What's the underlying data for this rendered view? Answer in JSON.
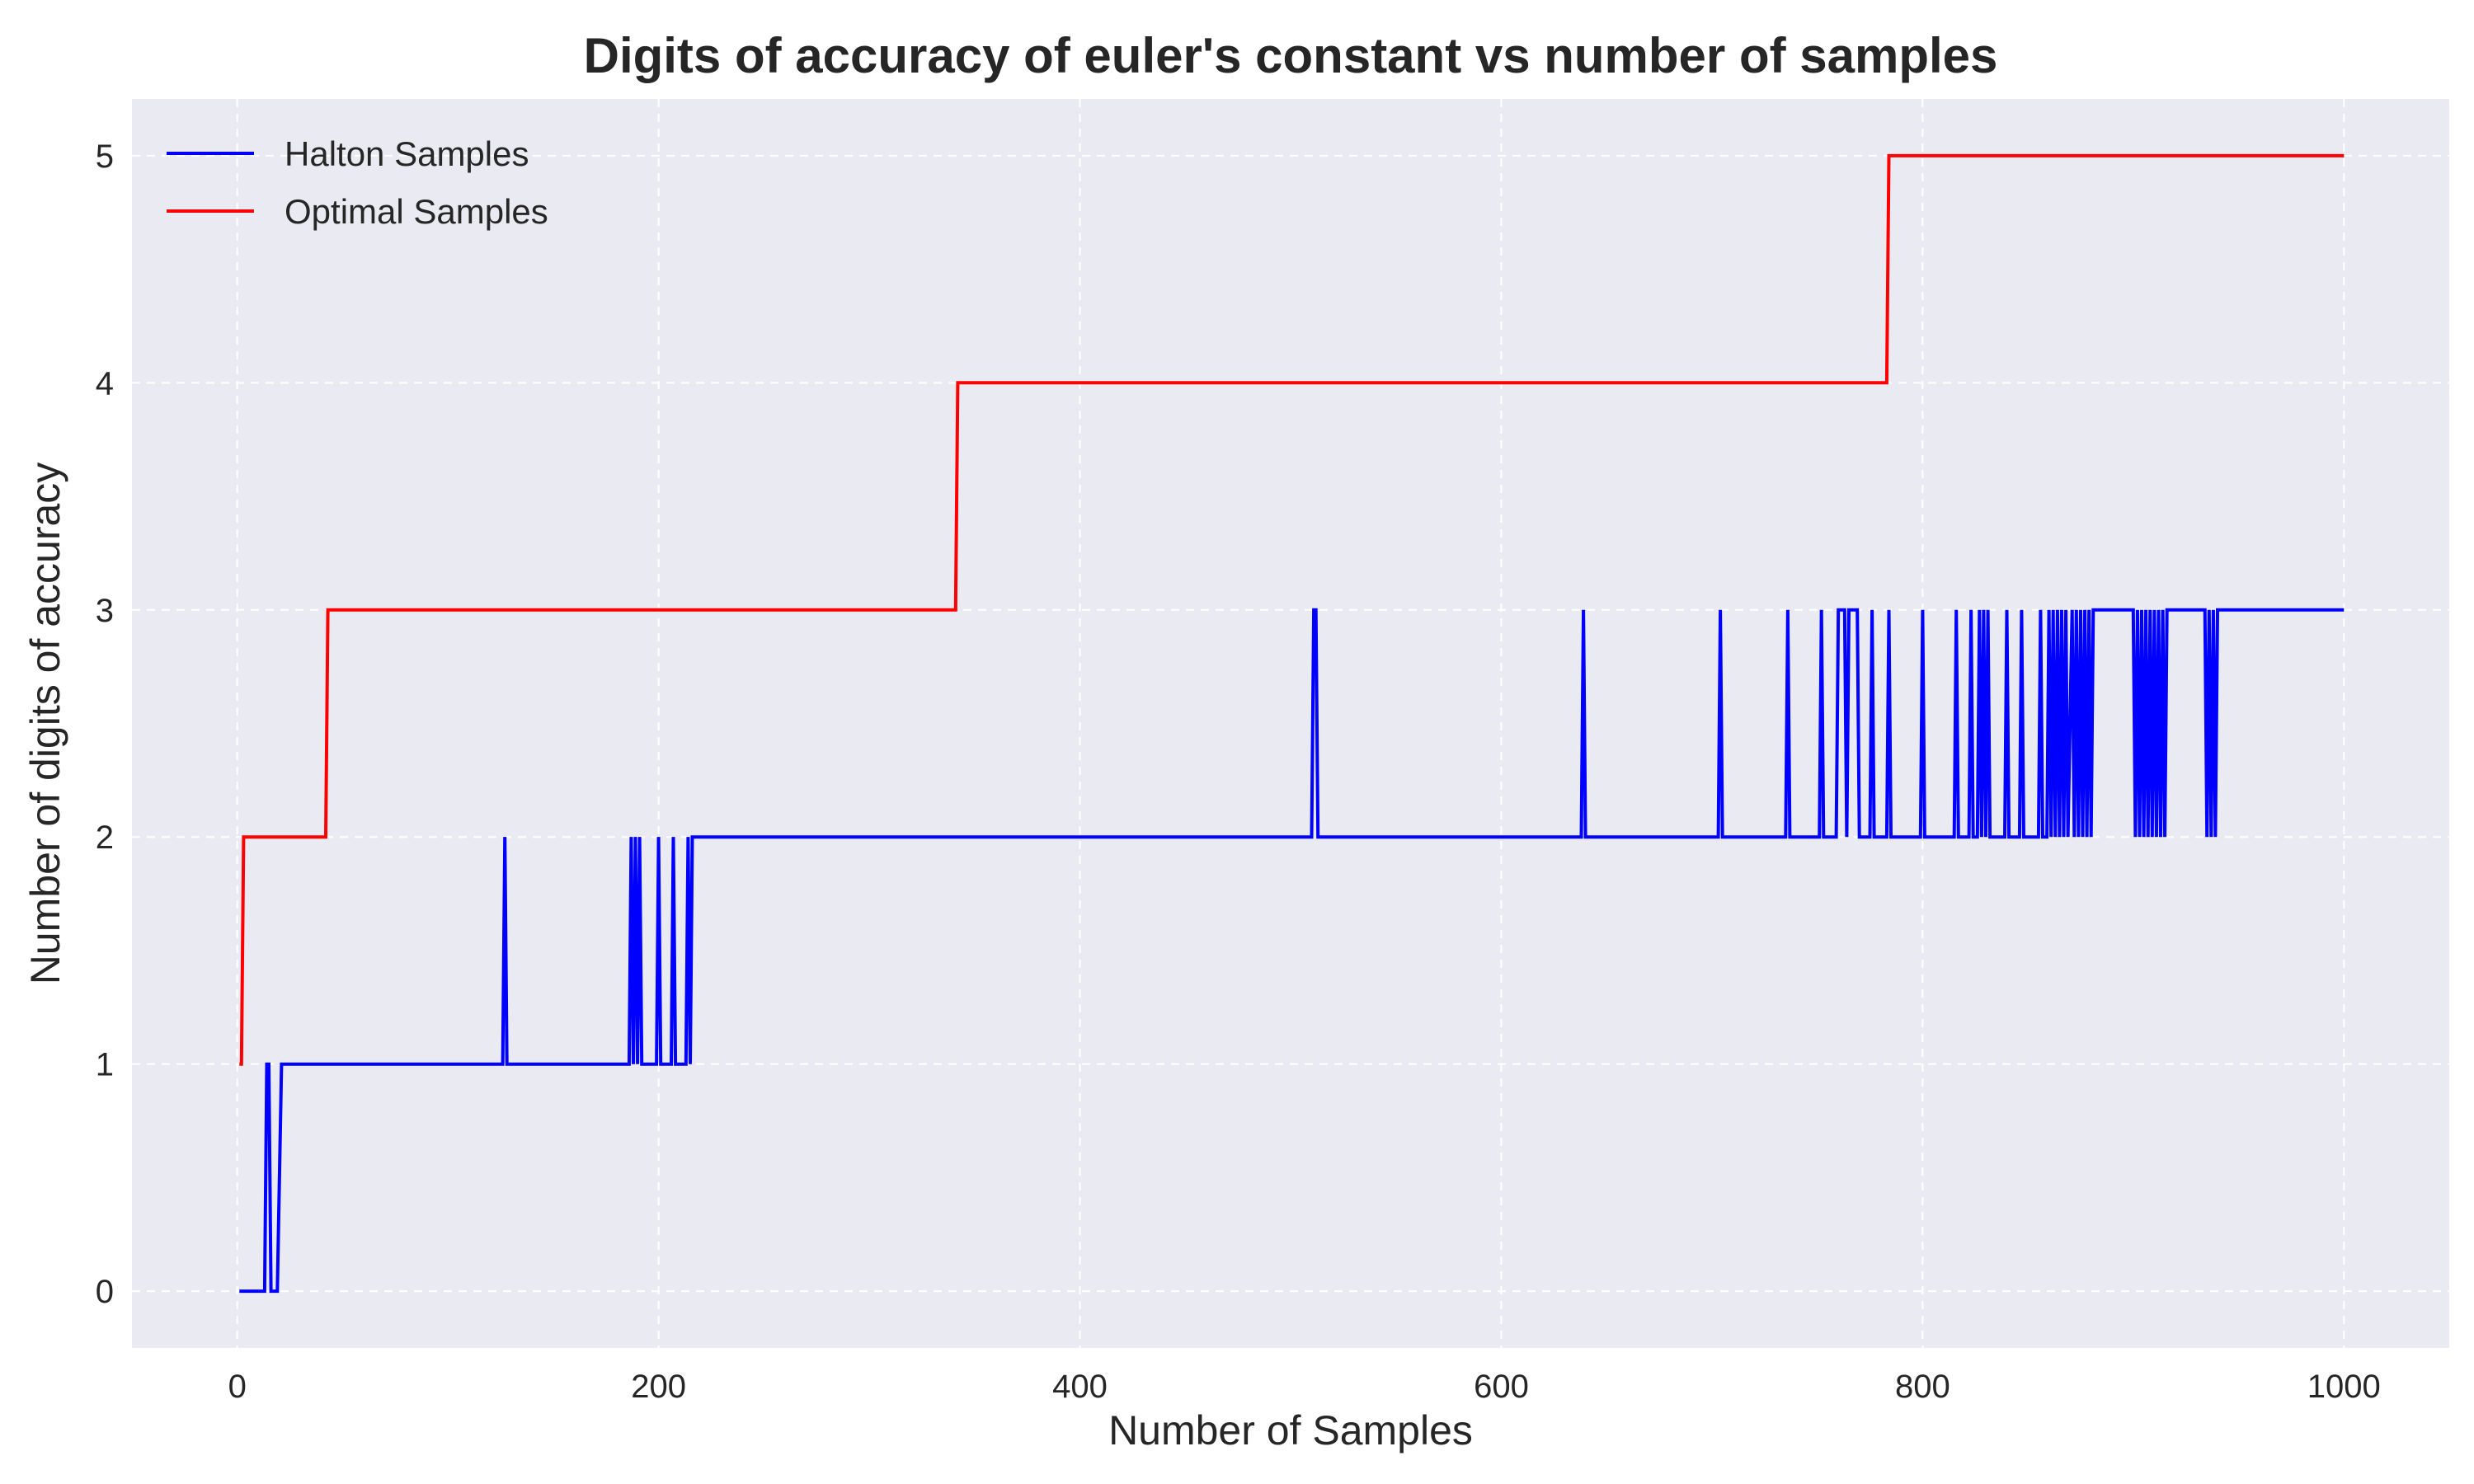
{
  "chart_data": {
    "type": "line",
    "title": "Digits of accuracy of euler's constant vs number of samples",
    "xlabel": "Number of Samples",
    "ylabel": "Number of digits of accuracy",
    "xlim": [
      -50,
      1050
    ],
    "ylim": [
      -0.25,
      5.25
    ],
    "xticks": [
      0,
      200,
      400,
      600,
      800,
      1000
    ],
    "yticks": [
      0,
      1,
      2,
      3,
      4,
      5
    ],
    "grid": true,
    "grid_style": "dashed",
    "background": "#eaeaf2",
    "legend_position": "top-left",
    "series": [
      {
        "name": "Halton Samples",
        "color": "#0000ff",
        "points": [
          [
            1,
            0
          ],
          [
            13,
            0
          ],
          [
            14,
            1
          ],
          [
            15,
            1
          ],
          [
            16,
            0
          ],
          [
            19,
            0
          ],
          [
            21,
            1
          ],
          [
            126,
            1
          ],
          [
            127,
            2
          ],
          [
            128,
            1
          ],
          [
            186,
            1
          ],
          [
            187,
            2
          ],
          [
            188,
            1
          ],
          [
            189,
            2
          ],
          [
            190,
            1
          ],
          [
            191,
            2
          ],
          [
            192,
            1
          ],
          [
            199,
            1
          ],
          [
            200,
            2
          ],
          [
            201,
            1
          ],
          [
            206,
            1
          ],
          [
            207,
            2
          ],
          [
            208,
            1
          ],
          [
            213,
            1
          ],
          [
            214,
            2
          ],
          [
            215,
            1
          ],
          [
            216,
            2
          ],
          [
            510,
            2
          ],
          [
            511,
            3
          ],
          [
            512,
            3
          ],
          [
            513,
            2
          ],
          [
            638,
            2
          ],
          [
            639,
            3
          ],
          [
            640,
            2
          ],
          [
            703,
            2
          ],
          [
            704,
            3
          ],
          [
            705,
            2
          ],
          [
            735,
            2
          ],
          [
            736,
            3
          ],
          [
            737,
            2
          ],
          [
            751,
            2
          ],
          [
            752,
            3
          ],
          [
            753,
            2
          ],
          [
            759,
            2
          ],
          [
            760,
            3
          ],
          [
            763,
            3
          ],
          [
            764,
            2
          ],
          [
            765,
            3
          ],
          [
            769,
            3
          ],
          [
            770,
            2
          ],
          [
            775,
            2
          ],
          [
            776,
            3
          ],
          [
            777,
            2
          ],
          [
            783,
            2
          ],
          [
            784,
            3
          ],
          [
            785,
            2
          ],
          [
            799,
            2
          ],
          [
            800,
            3
          ],
          [
            801,
            2
          ],
          [
            815,
            2
          ],
          [
            816,
            3
          ],
          [
            817,
            2
          ],
          [
            822,
            2
          ],
          [
            823,
            3
          ],
          [
            824,
            2
          ],
          [
            826,
            2
          ],
          [
            827,
            3
          ],
          [
            828,
            2
          ],
          [
            829,
            3
          ],
          [
            830,
            2
          ],
          [
            831,
            3
          ],
          [
            832,
            2
          ],
          [
            839,
            2
          ],
          [
            840,
            3
          ],
          [
            841,
            2
          ],
          [
            846,
            2
          ],
          [
            847,
            3
          ],
          [
            848,
            2
          ],
          [
            855,
            2
          ],
          [
            856,
            3
          ],
          [
            857,
            2
          ],
          [
            859,
            2
          ],
          [
            860,
            3
          ],
          [
            861,
            2
          ],
          [
            862,
            3
          ],
          [
            863,
            2
          ],
          [
            864,
            3
          ],
          [
            865,
            2
          ],
          [
            866,
            3
          ],
          [
            867,
            2
          ],
          [
            868,
            3
          ],
          [
            869,
            2
          ],
          [
            871,
            3
          ],
          [
            872,
            2
          ],
          [
            873,
            3
          ],
          [
            874,
            2
          ],
          [
            875,
            3
          ],
          [
            876,
            2
          ],
          [
            877,
            3
          ],
          [
            878,
            2
          ],
          [
            879,
            3
          ],
          [
            880,
            2
          ],
          [
            881,
            3
          ],
          [
            900,
            3
          ],
          [
            901,
            2
          ],
          [
            902,
            3
          ],
          [
            903,
            2
          ],
          [
            904,
            3
          ],
          [
            905,
            2
          ],
          [
            906,
            3
          ],
          [
            907,
            2
          ],
          [
            908,
            3
          ],
          [
            909,
            2
          ],
          [
            910,
            3
          ],
          [
            911,
            2
          ],
          [
            912,
            3
          ],
          [
            913,
            2
          ],
          [
            914,
            3
          ],
          [
            915,
            2
          ],
          [
            916,
            3
          ],
          [
            934,
            3
          ],
          [
            935,
            2
          ],
          [
            936,
            3
          ],
          [
            937,
            2
          ],
          [
            938,
            3
          ],
          [
            939,
            2
          ],
          [
            940,
            3
          ],
          [
            1000,
            3
          ]
        ]
      },
      {
        "name": "Optimal Samples",
        "color": "#ff0000",
        "points": [
          [
            1,
            1
          ],
          [
            2,
            1
          ],
          [
            3,
            2
          ],
          [
            42,
            2
          ],
          [
            43,
            3
          ],
          [
            341,
            3
          ],
          [
            342,
            4
          ],
          [
            783,
            4
          ],
          [
            784,
            5
          ],
          [
            1000,
            5
          ]
        ]
      }
    ]
  }
}
